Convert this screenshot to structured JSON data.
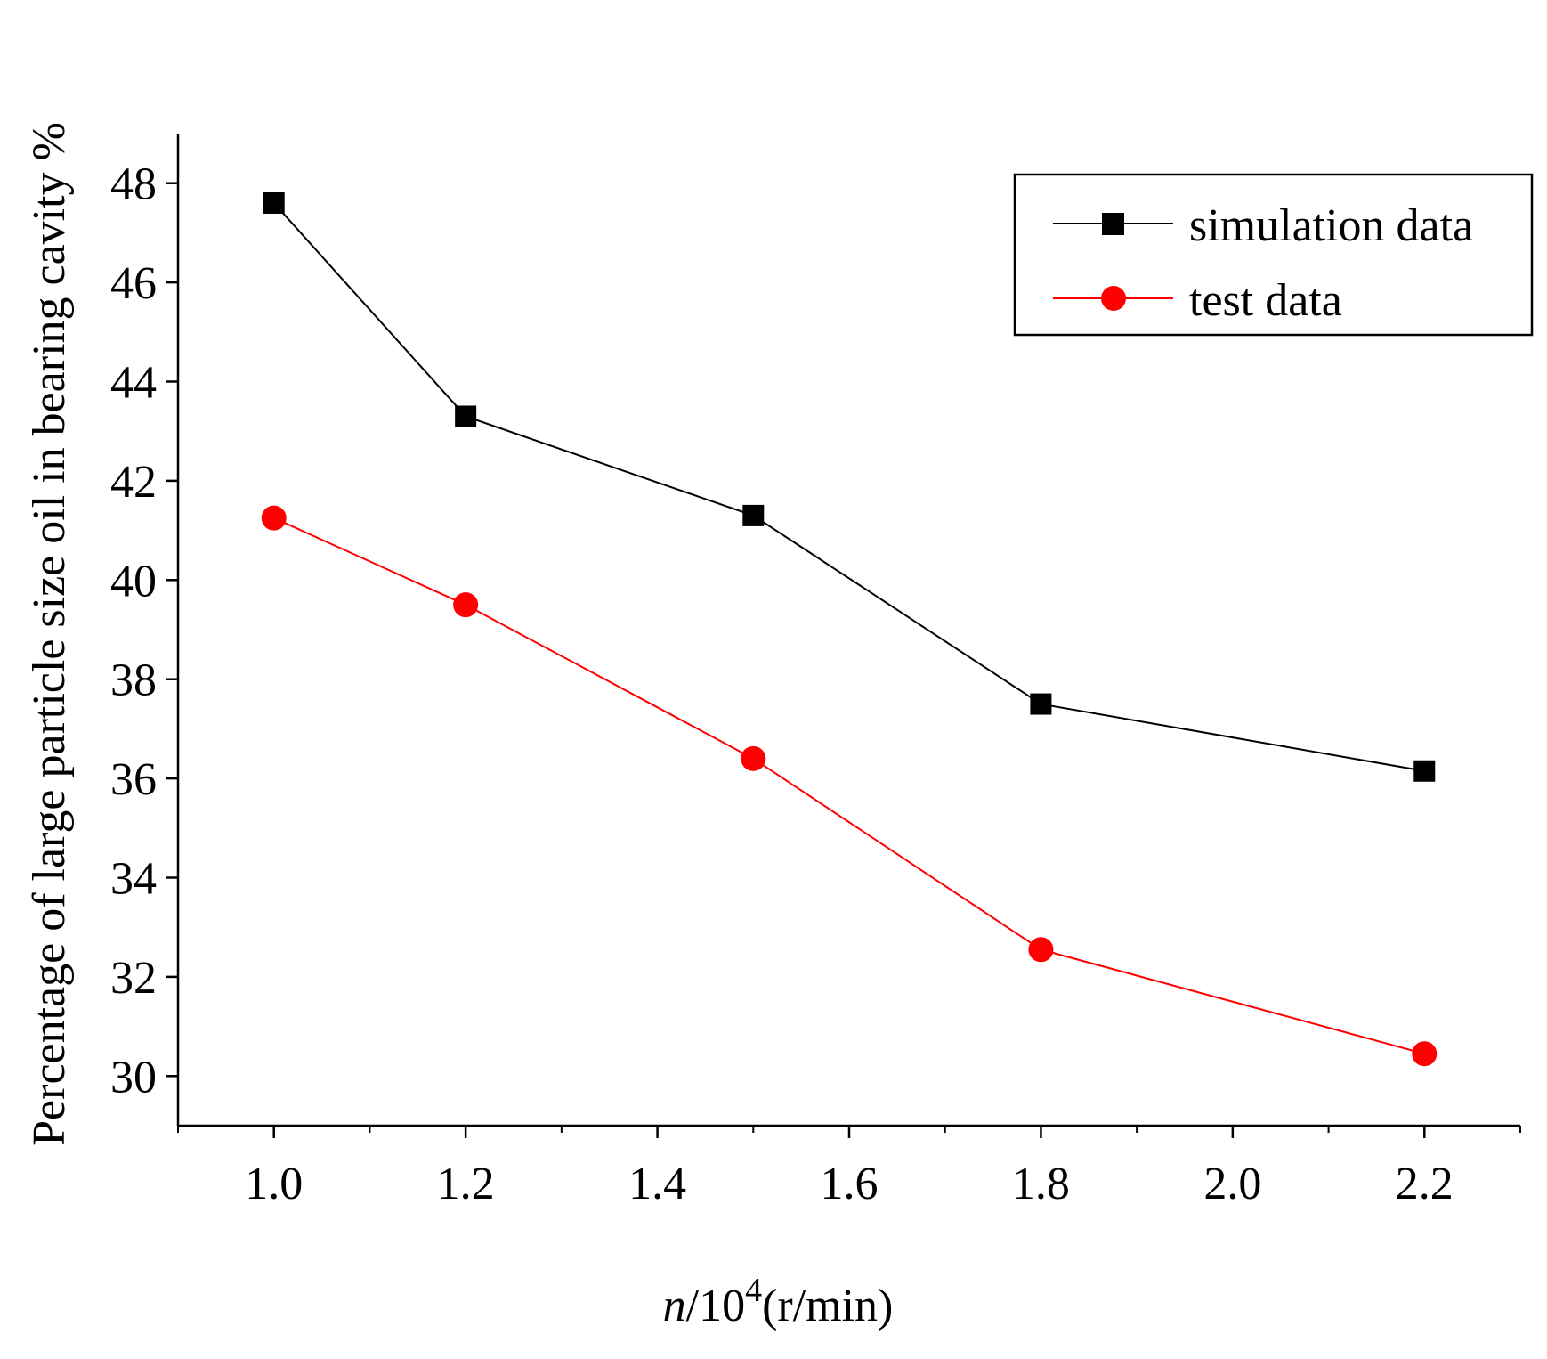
{
  "chart_data": {
    "type": "line",
    "title": "",
    "xlabel": {
      "variable": "n",
      "base": "/10",
      "exponent": "4",
      "unit": "(r/min)"
    },
    "ylabel": "Percentage of large particle size oil in bearing cavity %",
    "x": [
      1.0,
      1.2,
      1.5,
      1.8,
      2.2
    ],
    "xlim": [
      0.9,
      2.3
    ],
    "ylim": [
      29,
      49
    ],
    "xticks": [
      {
        "value": 1.0,
        "label": "1.0"
      },
      {
        "value": 1.2,
        "label": "1.2"
      },
      {
        "value": 1.4,
        "label": "1.4"
      },
      {
        "value": 1.6,
        "label": "1.6"
      },
      {
        "value": 1.8,
        "label": "1.8"
      },
      {
        "value": 2.0,
        "label": "2.0"
      },
      {
        "value": 2.2,
        "label": "2.2"
      }
    ],
    "yticks": [
      {
        "value": 30,
        "label": "30"
      },
      {
        "value": 32,
        "label": "32"
      },
      {
        "value": 34,
        "label": "34"
      },
      {
        "value": 36,
        "label": "36"
      },
      {
        "value": 38,
        "label": "38"
      },
      {
        "value": 40,
        "label": "40"
      },
      {
        "value": 42,
        "label": "42"
      },
      {
        "value": 44,
        "label": "44"
      },
      {
        "value": 46,
        "label": "46"
      },
      {
        "value": 48,
        "label": "48"
      }
    ],
    "series": [
      {
        "name": "simulation data",
        "marker": "square",
        "color": "#000000",
        "values": [
          47.6,
          43.3,
          41.3,
          37.5,
          36.15
        ]
      },
      {
        "name": "test data",
        "marker": "circle",
        "color": "#ff0000",
        "values": [
          41.25,
          39.5,
          36.4,
          32.55,
          30.45
        ]
      }
    ],
    "legend_position": "top-right",
    "grid": false
  }
}
